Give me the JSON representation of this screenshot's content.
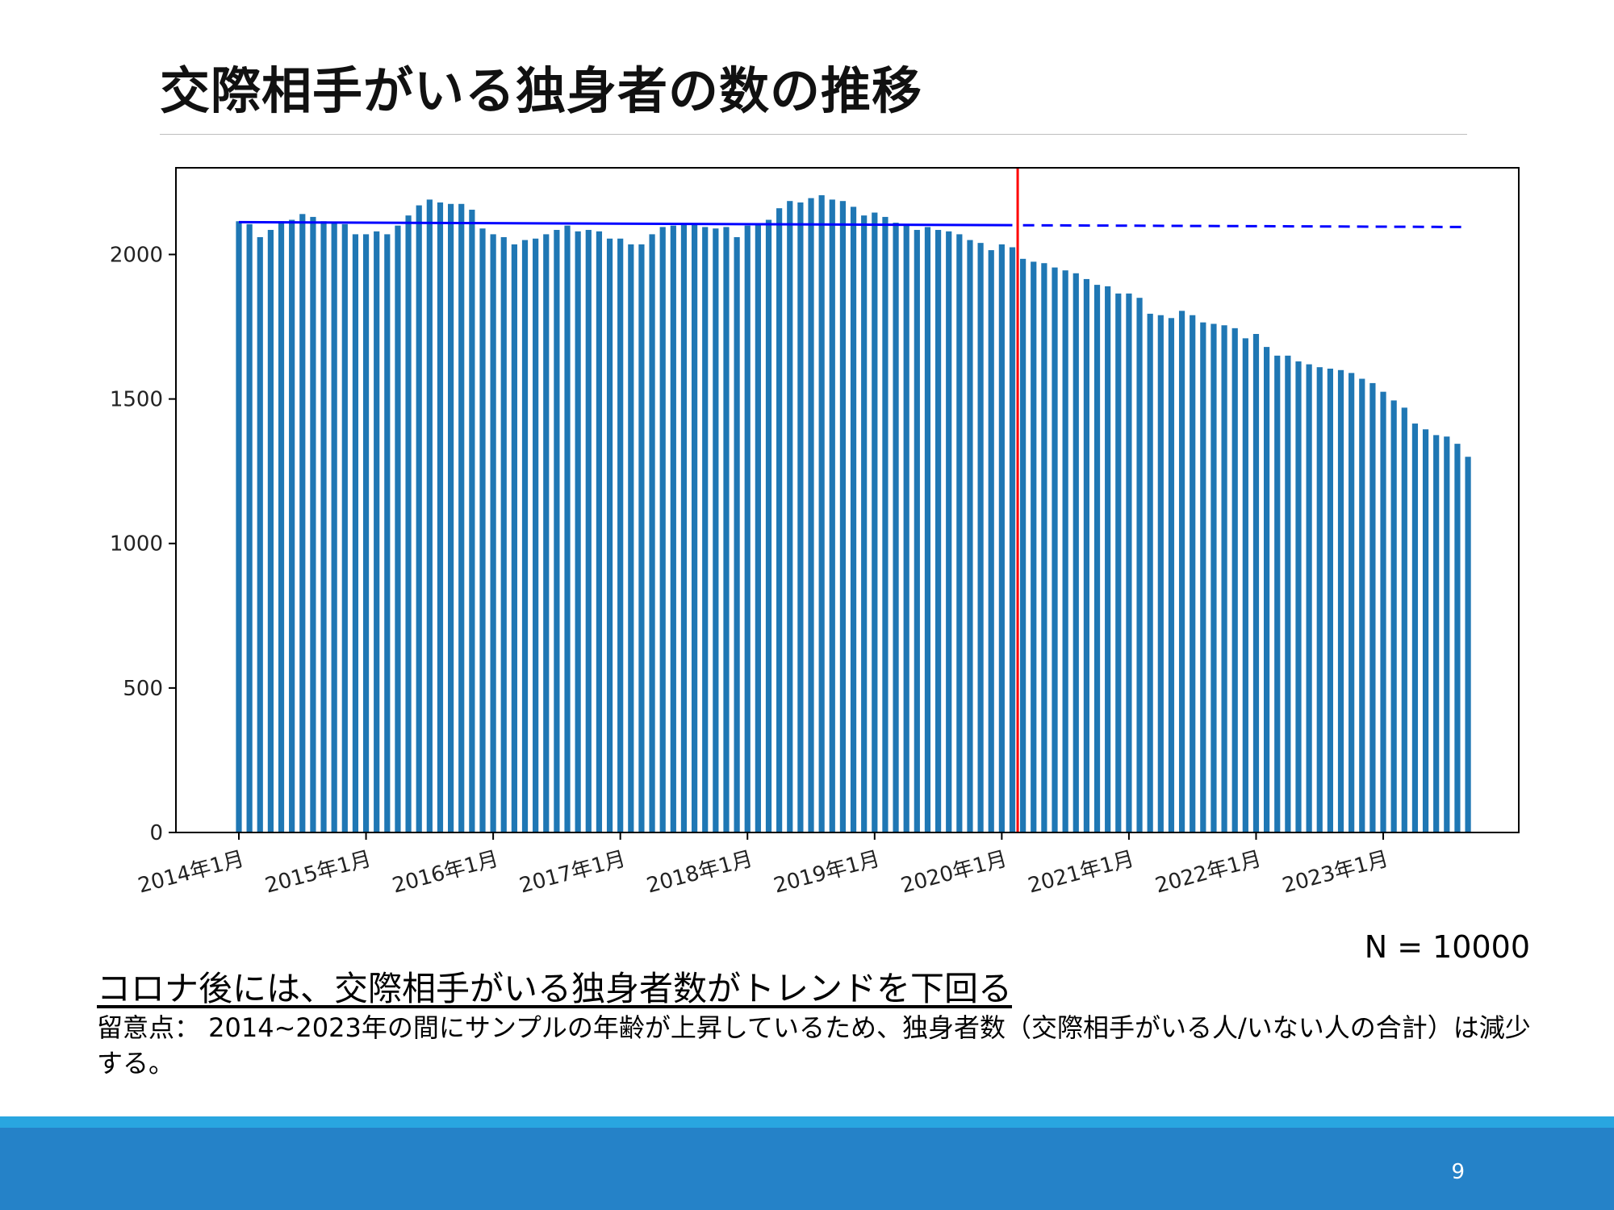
{
  "slide": {
    "title": "交際相手がいる独身者の数の推移",
    "n_label": "N = 10000",
    "headline": "コロナ後には、交際相手がいる独身者数がトレンドを下回る",
    "note": "留意点： 2014~2023年の間にサンプルの年齢が上昇しているため、独身者数（交際相手がいる人/いない人の合計）は減少する。",
    "page_number": "9"
  },
  "colors": {
    "bar": "#1f77b4",
    "trend_line": "#0000ff",
    "marker_line": "#ff0000",
    "footer": "#2582c8",
    "footer_stripe": "#29a6e0"
  },
  "chart_data": {
    "type": "bar",
    "start": "2014-01",
    "x_tick_labels": [
      "2014年1月",
      "2015年1月",
      "2016年1月",
      "2017年1月",
      "2018年1月",
      "2019年1月",
      "2020年1月",
      "2021年1月",
      "2022年1月",
      "2023年1月"
    ],
    "ylim": [
      0,
      2300
    ],
    "y_ticks": [
      0,
      500,
      1000,
      1500,
      2000
    ],
    "values": [
      2115,
      2105,
      2060,
      2085,
      2115,
      2120,
      2140,
      2130,
      2115,
      2110,
      2105,
      2070,
      2070,
      2080,
      2070,
      2100,
      2135,
      2170,
      2190,
      2180,
      2175,
      2175,
      2155,
      2090,
      2070,
      2060,
      2035,
      2050,
      2055,
      2070,
      2085,
      2100,
      2080,
      2085,
      2080,
      2055,
      2055,
      2035,
      2035,
      2070,
      2095,
      2100,
      2105,
      2105,
      2095,
      2090,
      2095,
      2060,
      2100,
      2105,
      2120,
      2160,
      2185,
      2180,
      2195,
      2205,
      2190,
      2185,
      2165,
      2135,
      2145,
      2130,
      2110,
      2105,
      2085,
      2095,
      2085,
      2080,
      2070,
      2050,
      2040,
      2015,
      2035,
      2025,
      1985,
      1975,
      1970,
      1955,
      1945,
      1935,
      1915,
      1895,
      1890,
      1865,
      1865,
      1850,
      1795,
      1790,
      1780,
      1805,
      1790,
      1765,
      1760,
      1755,
      1745,
      1710,
      1725,
      1680,
      1650,
      1650,
      1630,
      1620,
      1610,
      1605,
      1600,
      1590,
      1570,
      1555,
      1525,
      1495,
      1470,
      1415,
      1395,
      1375,
      1370,
      1345,
      1300
    ],
    "trend": {
      "start_value": 2112,
      "end_value": 2095,
      "solid_until_index": 73
    },
    "marker_index": 74
  }
}
